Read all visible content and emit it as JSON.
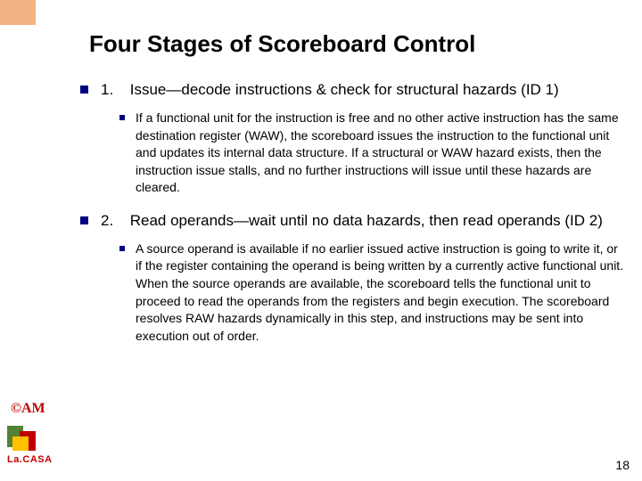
{
  "title": "Four Stages of Scoreboard Control",
  "items": [
    {
      "num": "1.",
      "head": "Issue—decode instructions & check for structural hazards (ID 1)",
      "sub": "If a functional unit for the instruction is free and no other active instruction has the same destination register (WAW), the scoreboard issues the instruction to the functional unit and updates its internal data structure. If a structural or WAW hazard exists, then the instruction issue stalls, and no further instructions will issue until these hazards are cleared."
    },
    {
      "num": "2.",
      "head": "Read operands—wait until no data hazards, then read operands (ID 2)",
      "sub": "A source operand is available if no earlier issued active instruction is going to write it, or if the register containing the operand is being written by a currently active functional unit. When the source operands are available, the scoreboard tells the functional unit to proceed to read the operands from the registers and begin execution. The scoreboard resolves RAW hazards dynamically in this step, and instructions may be sent into execution out of order."
    }
  ],
  "am": "©AM",
  "logoText": "La.CASA",
  "pageNum": "18",
  "colors": {
    "corner": "#f4b183",
    "bullet": "#000080",
    "accent": "#c00000"
  }
}
